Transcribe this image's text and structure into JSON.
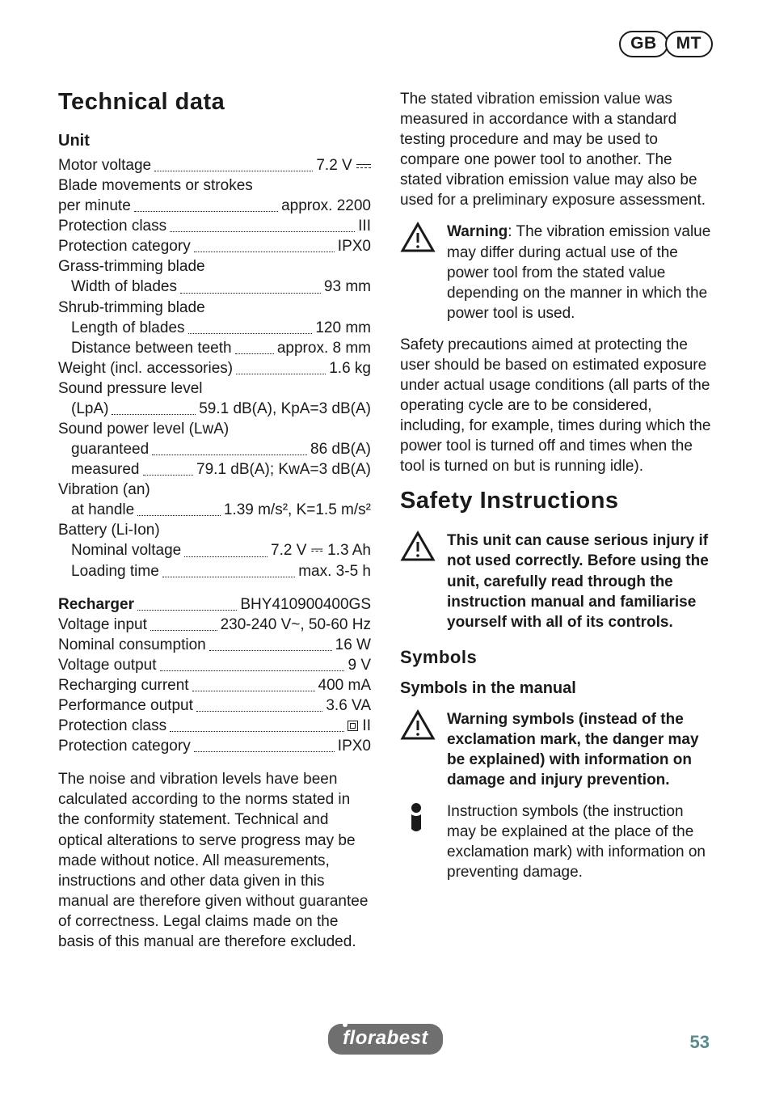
{
  "corner": {
    "left": "GB",
    "right": "MT"
  },
  "left": {
    "h1": "Technical data",
    "unit_heading": "Unit",
    "specs": [
      {
        "label": "Motor voltage",
        "value": "7.2 V",
        "dcline": true
      },
      {
        "plain": "Blade movements or strokes"
      },
      {
        "label": "per minute",
        "value": "approx. 2200"
      },
      {
        "label": "Protection class",
        "value": "III"
      },
      {
        "label": "Protection category",
        "value": "IPX0"
      },
      {
        "plain": "Grass-trimming blade"
      },
      {
        "indent": true,
        "label": "Width of blades",
        "value": "93 mm"
      },
      {
        "plain": "Shrub-trimming blade"
      },
      {
        "indent": true,
        "label": "Length of blades",
        "value": "120 mm"
      },
      {
        "indent": true,
        "label": "Distance between teeth",
        "value": "approx. 8 mm"
      },
      {
        "label": "Weight (incl. accessories)",
        "value": "1.6 kg"
      },
      {
        "plain": "Sound pressure level"
      },
      {
        "indent": true,
        "label": "(LpA)",
        "value": "59.1 dB(A), KpA=3 dB(A)"
      },
      {
        "plain": "Sound power level (LwA)"
      },
      {
        "indent": true,
        "label": "guaranteed",
        "value": "86 dB(A)"
      },
      {
        "indent": true,
        "label": "measured",
        "value": "79.1 dB(A); KwA=3 dB(A)"
      },
      {
        "plain": "Vibration (an)"
      },
      {
        "indent": true,
        "label": "at handle",
        "value": "1.39 m/s², K=1.5 m/s²"
      },
      {
        "plain": "Battery (Li-Ion)"
      },
      {
        "indent": true,
        "label": "Nominal voltage",
        "value": "7.2 V ⎓ 1.3 Ah"
      },
      {
        "indent": true,
        "label": "Loading time",
        "value": "max. 3-5 h"
      }
    ],
    "recharger_label": "Recharger",
    "recharger_value": "BHY410900400GS",
    "recharger_specs": [
      {
        "label": "Voltage input",
        "value": "230-240 V~, 50-60 Hz"
      },
      {
        "label": "Nominal consumption",
        "value": "16 W"
      },
      {
        "label": "Voltage output",
        "value": "9 V"
      },
      {
        "label": "Recharging current",
        "value": "400 mA"
      },
      {
        "label": "Performance output",
        "value": "3.6 VA"
      },
      {
        "label": "Protection class",
        "value": "□ II",
        "dblbox": true
      },
      {
        "label": "Protection category",
        "value": "IPX0"
      }
    ],
    "para": "The noise and vibration levels have been calculated according to the norms stated in the conformity statement. Technical and optical alterations to serve progress may be made without notice. All measurements, instructions and other data given in this manual are therefore given without guarantee of correctness. Legal claims made on the basis of this manual are therefore excluded."
  },
  "right": {
    "para1": "The stated vibration emission value was measured in accordance with a standard testing procedure and may be used to compare one power tool to another. The stated vibration emission value may also be used for a preliminary exposure assessment.",
    "warn1_lead": "Warning",
    "warn1_body": ": The vibration emission value may differ during actual use of the power tool from the stated value depending on the manner in which the power tool is used.",
    "para2": "Safety precautions aimed at protecting the user should be based on estimated exposure under actual usage conditions (all parts of the operating cycle are to be considered, including, for example, times during which the power tool is turned off and times when the tool is turned on but is running idle).",
    "h1": "Safety Instructions",
    "warn2": "This unit can cause serious injury if not used correctly. Before using the unit, carefully read through the instruction manual and familiarise yourself with all of its controls.",
    "symbols_heading": "Symbols",
    "symbols_sub": "Symbols in the manual",
    "warn3": "Warning symbols (instead of the exclamation mark, the danger may be explained) with information on damage and injury prevention.",
    "info1": "Instruction symbols (the instruction may be explained at the place of the exclamation mark) with information on preventing damage."
  },
  "footer": {
    "brand": "florabest",
    "page": "53"
  },
  "colors": {
    "text": "#1a1a1a",
    "page_num": "#5a8a8a",
    "brand_bg": "#6f6f6f"
  }
}
